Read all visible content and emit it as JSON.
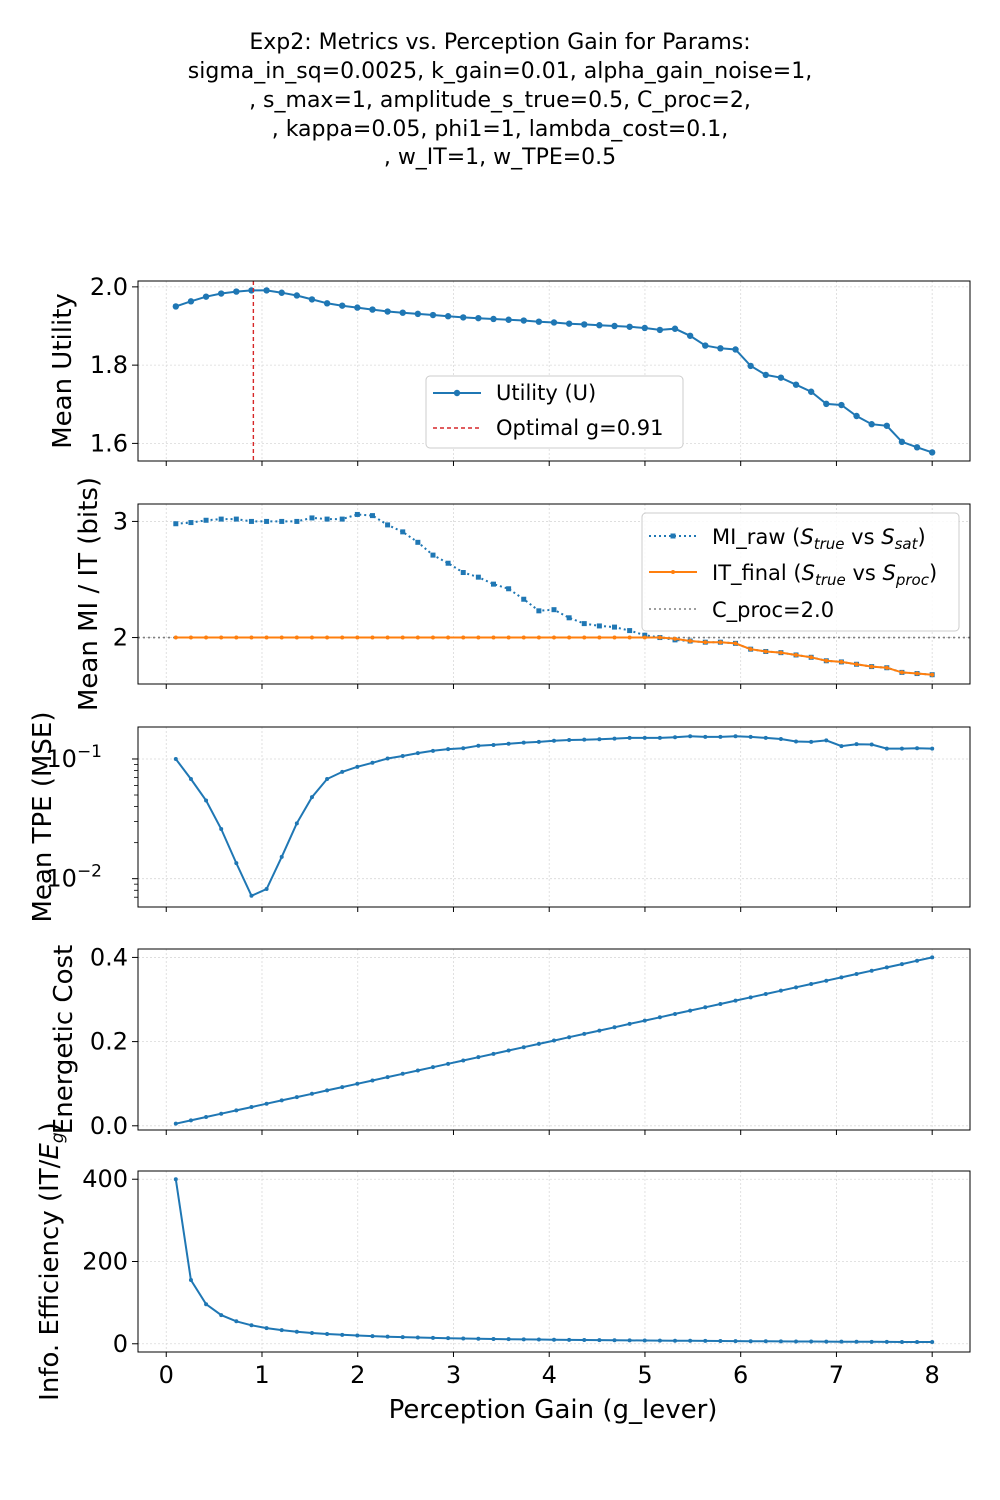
{
  "figure_title_lines": [
    "Exp2: Metrics vs. Perception Gain for Params:",
    "sigma_in_sq=0.0025, k_gain=0.01, alpha_gain_noise=1,",
    ", s_max=1, amplitude_s_true=0.5, C_proc=2,",
    ", kappa=0.05, phi1=1, lambda_cost=0.1,",
    ", w_IT=1, w_TPE=0.5"
  ],
  "x_label": "Perception Gain (g_lever)",
  "x_ticks": [
    "0",
    "1",
    "2",
    "3",
    "4",
    "5",
    "6",
    "7",
    "8"
  ],
  "colors": {
    "blue": "#1f77b4",
    "orange": "#ff7f0e",
    "red": "#d62728",
    "gray": "#7f7f7f"
  },
  "chart_data": [
    {
      "type": "line",
      "ylabel": "Mean Utility",
      "ylim": [
        1.555,
        2.015
      ],
      "yticks": [
        {
          "v": 1.6,
          "label": "1.6"
        },
        {
          "v": 1.8,
          "label": "1.8"
        },
        {
          "v": 2.0,
          "label": "2.0"
        }
      ],
      "legend_position": "center",
      "series": [
        {
          "name": "Utility (U)",
          "color": "#1f77b4",
          "style": "solid",
          "marker": "circle",
          "y": [
            1.95,
            1.963,
            1.975,
            1.983,
            1.988,
            1.991,
            1.991,
            1.985,
            1.978,
            1.968,
            1.958,
            1.952,
            1.947,
            1.942,
            1.937,
            1.934,
            1.931,
            1.928,
            1.925,
            1.922,
            1.92,
            1.918,
            1.916,
            1.914,
            1.911,
            1.909,
            1.906,
            1.904,
            1.902,
            1.9,
            1.898,
            1.895,
            1.89,
            1.893,
            1.875,
            1.85,
            1.843,
            1.84,
            1.798,
            1.775,
            1.768,
            1.75,
            1.732,
            1.701,
            1.698,
            1.67,
            1.649,
            1.645,
            1.604,
            1.59,
            1.577
          ]
        }
      ],
      "vline": {
        "name": "Optimal g=0.91",
        "x": 0.91,
        "color": "#d62728",
        "style": "dashed"
      }
    },
    {
      "type": "line",
      "ylabel": "Mean MI / IT (bits)",
      "ylim": [
        1.6,
        3.15
      ],
      "yticks": [
        {
          "v": 2,
          "label": "2"
        },
        {
          "v": 3,
          "label": "3"
        }
      ],
      "legend_position": "top-right",
      "series": [
        {
          "name": "MI_raw",
          "math": [
            "S",
            "true",
            "S",
            "sat"
          ],
          "color": "#1f77b4",
          "style": "dotted",
          "marker": "square",
          "y": [
            2.98,
            2.99,
            3.01,
            3.02,
            3.02,
            3.0,
            3.0,
            3.0,
            3.0,
            3.03,
            3.02,
            3.02,
            3.06,
            3.05,
            2.97,
            2.91,
            2.82,
            2.71,
            2.64,
            2.56,
            2.52,
            2.46,
            2.42,
            2.33,
            2.23,
            2.24,
            2.17,
            2.12,
            2.1,
            2.09,
            2.06,
            2.02,
            2.0,
            1.98,
            1.97,
            1.96,
            1.96,
            1.95,
            1.9,
            1.88,
            1.87,
            1.85,
            1.83,
            1.8,
            1.79,
            1.77,
            1.75,
            1.74,
            1.7,
            1.69,
            1.68
          ]
        },
        {
          "name": "IT_final",
          "math": [
            "S",
            "true",
            "S",
            "proc"
          ],
          "color": "#ff7f0e",
          "style": "solid",
          "marker": "dot",
          "y": [
            2,
            2,
            2,
            2,
            2,
            2,
            2,
            2,
            2,
            2,
            2,
            2,
            2,
            2,
            2,
            2,
            2,
            2,
            2,
            2,
            2,
            2,
            2,
            2,
            2,
            2,
            2,
            2,
            2,
            2,
            2,
            2,
            2,
            1.99,
            1.97,
            1.96,
            1.96,
            1.95,
            1.9,
            1.88,
            1.87,
            1.85,
            1.83,
            1.8,
            1.79,
            1.77,
            1.75,
            1.74,
            1.7,
            1.69,
            1.68
          ]
        }
      ],
      "hline": {
        "name": "C_proc=2.0",
        "y": 2.0,
        "color": "#7f7f7f",
        "style": "dotted"
      }
    },
    {
      "type": "line",
      "ylabel": "Mean TPE (MSE)",
      "yscale": "log",
      "ylim": [
        0.0058,
        0.185
      ],
      "yticks": [
        {
          "v": 0.1,
          "base": "10",
          "exp": "−1"
        },
        {
          "v": 0.01,
          "base": "10",
          "exp": "−2"
        }
      ],
      "series": [
        {
          "name": "",
          "color": "#1f77b4",
          "style": "solid",
          "marker": "dot",
          "y": [
            0.1,
            0.068,
            0.045,
            0.026,
            0.0135,
            0.0072,
            0.0082,
            0.0152,
            0.029,
            0.048,
            0.068,
            0.078,
            0.086,
            0.093,
            0.101,
            0.106,
            0.112,
            0.117,
            0.121,
            0.123,
            0.129,
            0.131,
            0.134,
            0.137,
            0.139,
            0.142,
            0.144,
            0.145,
            0.146,
            0.148,
            0.15,
            0.15,
            0.15,
            0.152,
            0.155,
            0.153,
            0.153,
            0.155,
            0.153,
            0.15,
            0.147,
            0.14,
            0.139,
            0.143,
            0.128,
            0.133,
            0.132,
            0.122,
            0.122,
            0.123,
            0.122
          ]
        }
      ]
    },
    {
      "type": "line",
      "ylabel": "Energetic Cost",
      "ylim": [
        -0.01,
        0.42
      ],
      "yticks": [
        {
          "v": 0.0,
          "label": "0.0"
        },
        {
          "v": 0.2,
          "label": "0.2"
        },
        {
          "v": 0.4,
          "label": "0.4"
        }
      ],
      "series": [
        {
          "name": "",
          "color": "#1f77b4",
          "style": "solid",
          "marker": "dot",
          "y_formula": "0.05*x"
        }
      ]
    },
    {
      "type": "line",
      "ylabel": "Info. Efficiency (IT/Eg)",
      "ylabel_parts": [
        "Info. Efficiency (IT/",
        "E",
        "g",
        ")"
      ],
      "ylim": [
        -20,
        420
      ],
      "yticks": [
        {
          "v": 0,
          "label": "0"
        },
        {
          "v": 200,
          "label": "200"
        },
        {
          "v": 400,
          "label": "400"
        }
      ],
      "series": [
        {
          "name": "",
          "color": "#1f77b4",
          "style": "solid",
          "marker": "dot",
          "y_formula": "IT_final/(0.05*x)"
        }
      ]
    }
  ],
  "x_values": {
    "start": 0.1,
    "end": 8.0,
    "count": 51
  }
}
